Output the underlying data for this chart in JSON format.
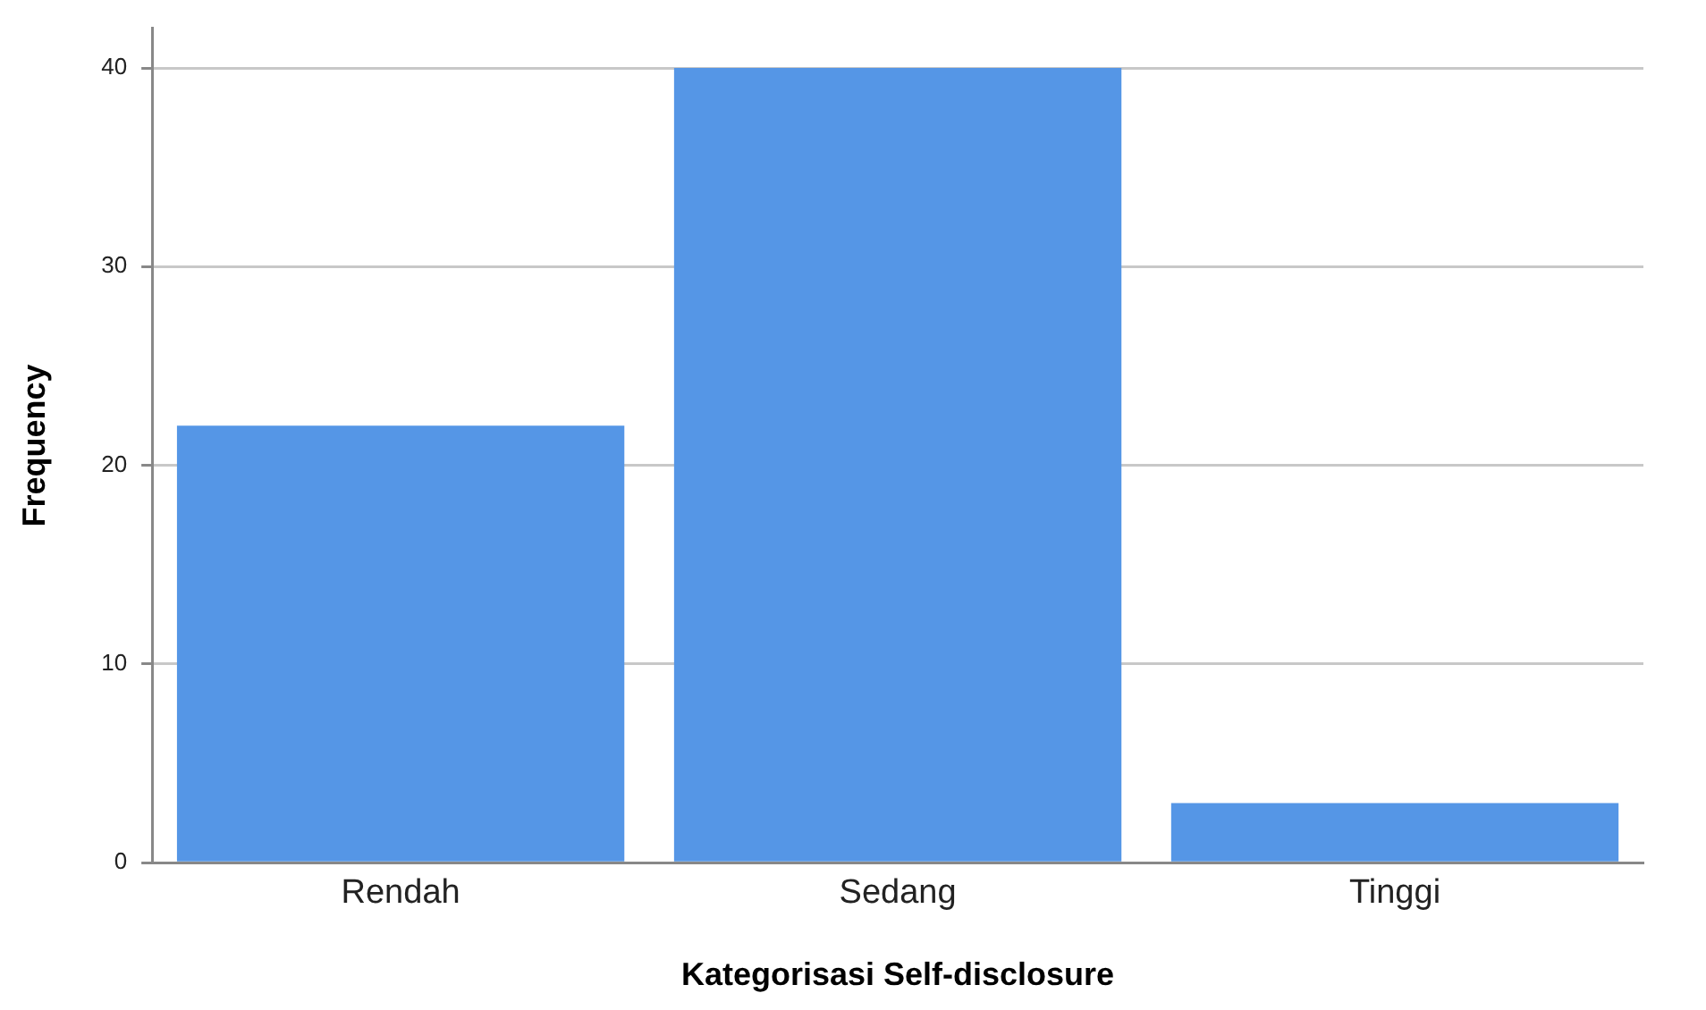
{
  "chart_data": {
    "type": "bar",
    "xlabel": "Kategorisasi Self-disclosure",
    "ylabel": "Frequency",
    "categories": [
      "Rendah",
      "Sedang",
      "Tinggi"
    ],
    "values": [
      22,
      40,
      3
    ],
    "color": "#5596e6",
    "ylim": [
      0,
      42
    ],
    "yticks": [
      0,
      10,
      20,
      30,
      40
    ],
    "grid": "y",
    "legend": false
  }
}
